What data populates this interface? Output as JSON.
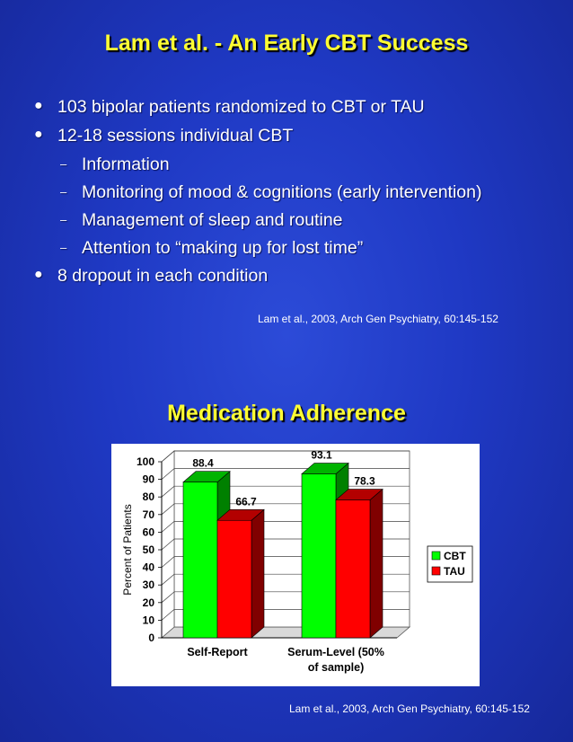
{
  "slide": {
    "title": "Lam et al. -  An Early CBT Success",
    "bullets": [
      {
        "level": 1,
        "text": "103 bipolar patients randomized to CBT or TAU"
      },
      {
        "level": 1,
        "text": "12-18 sessions individual CBT"
      },
      {
        "level": 2,
        "text": "Information"
      },
      {
        "level": 2,
        "text": "Monitoring of mood & cognitions (early intervention)"
      },
      {
        "level": 2,
        "text": "Management of sleep and routine"
      },
      {
        "level": 2,
        "text": "Attention to “making up for lost time”"
      },
      {
        "level": 1,
        "text": "8 dropout in each condition"
      }
    ],
    "citation_top": "Lam et al., 2003, Arch Gen Psychiatry,  60:145-152",
    "chart_title": "Medication Adherence",
    "citation_bottom": "Lam et al., 2003, Arch Gen Psychiatry,  60:145-152",
    "colors": {
      "title": "#ffff33",
      "background": "#1f39c4"
    }
  },
  "chart_data": {
    "type": "bar",
    "title": "Medication Adherence",
    "categories": [
      "Self-Report",
      "Serum-Level (50% of sample)"
    ],
    "category_lines": [
      [
        "Self-Report"
      ],
      [
        "Serum-Level (50%",
        "of sample)"
      ]
    ],
    "series": [
      {
        "name": "CBT",
        "values": [
          88.4,
          93.1
        ],
        "color": "#00ff00",
        "value_labels": [
          "88.4",
          "93.1"
        ]
      },
      {
        "name": "TAU",
        "values": [
          66.7,
          78.3
        ],
        "color": "#ff0000",
        "value_labels": [
          "66.7",
          "78.3"
        ]
      }
    ],
    "xlabel": "",
    "ylabel": "Percent of Patients",
    "ylim": [
      0,
      100
    ],
    "yticks": [
      0,
      10,
      20,
      30,
      40,
      50,
      60,
      70,
      80,
      90,
      100
    ],
    "grid": true,
    "legend_position": "right",
    "three_d": true
  }
}
